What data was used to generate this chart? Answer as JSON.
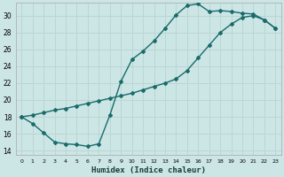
{
  "xlabel": "Humidex (Indice chaleur)",
  "background_color": "#cce5e5",
  "grid_color": "#b8d4d4",
  "line_color": "#1a6b6b",
  "marker": "D",
  "markersize": 2.0,
  "linewidth": 1.0,
  "xlim": [
    -0.5,
    23.5
  ],
  "ylim": [
    13.5,
    31.5
  ],
  "xticks": [
    0,
    1,
    2,
    3,
    4,
    5,
    6,
    7,
    8,
    9,
    10,
    11,
    12,
    13,
    14,
    15,
    16,
    17,
    18,
    19,
    20,
    21,
    22,
    23
  ],
  "yticks": [
    14,
    16,
    18,
    20,
    22,
    24,
    26,
    28,
    30
  ],
  "line1_x": [
    0,
    1,
    2,
    3,
    4,
    5,
    6,
    7,
    8,
    9,
    10,
    11,
    12,
    13,
    14,
    15,
    16,
    17,
    18,
    19,
    20,
    21,
    22,
    23
  ],
  "line1_y": [
    18.0,
    17.2,
    16.1,
    15.0,
    14.8,
    14.7,
    14.5,
    14.8,
    18.2,
    22.2,
    24.8,
    25.8,
    27.0,
    28.5,
    30.1,
    31.2,
    31.4,
    30.5,
    30.6,
    30.5,
    30.3,
    30.2,
    29.5,
    28.5
  ],
  "line2_x": [
    0,
    1,
    2,
    3,
    4,
    5,
    6,
    7,
    8,
    9,
    10,
    11,
    12,
    13,
    14,
    15,
    16,
    17,
    18,
    19,
    20,
    21,
    22,
    23
  ],
  "line2_y": [
    18.0,
    18.2,
    18.5,
    18.8,
    19.0,
    19.3,
    19.6,
    19.9,
    20.2,
    20.5,
    20.8,
    21.2,
    21.6,
    22.0,
    22.5,
    23.5,
    25.0,
    26.5,
    28.0,
    29.0,
    29.8,
    30.0,
    29.5,
    28.5
  ]
}
